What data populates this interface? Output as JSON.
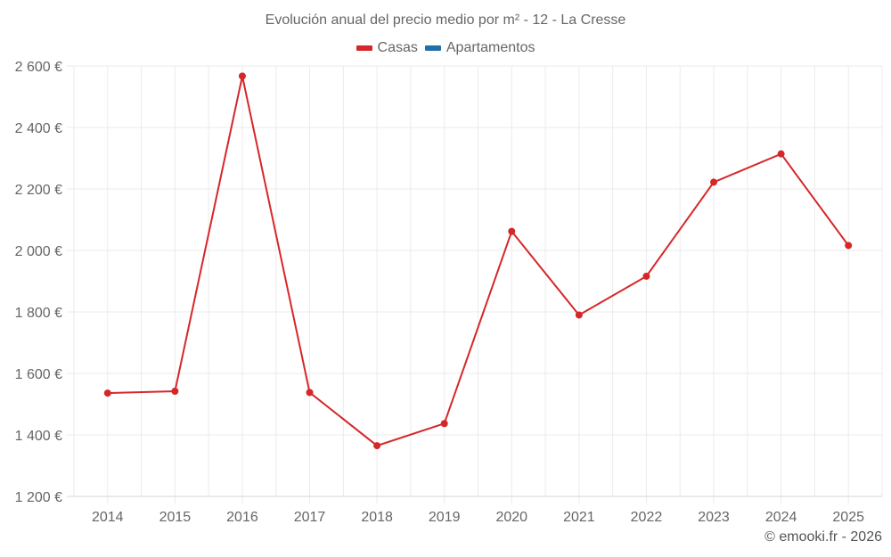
{
  "chart_data": {
    "type": "line",
    "title": "Evolución anual del precio medio por m² - 12 - La Cresse",
    "xlabel": "",
    "ylabel": "",
    "categories": [
      "2014",
      "2015",
      "2016",
      "2017",
      "2018",
      "2019",
      "2020",
      "2021",
      "2022",
      "2023",
      "2024",
      "2025"
    ],
    "series": [
      {
        "name": "Casas",
        "color": "#d62728",
        "values": [
          1536,
          1542,
          2567,
          1538,
          1365,
          1437,
          2062,
          1790,
          1916,
          2222,
          2314,
          2016
        ]
      },
      {
        "name": "Apartamentos",
        "color": "#1f6fa8",
        "values": []
      }
    ],
    "ylim": [
      1200,
      2600
    ],
    "yticks": [
      1200,
      1400,
      1600,
      1800,
      2000,
      2200,
      2400,
      2600
    ],
    "ytick_labels": [
      "1 200 €",
      "1 400 €",
      "1 600 €",
      "1 800 €",
      "2 000 €",
      "2 200 €",
      "2 400 €",
      "2 600 €"
    ],
    "grid": true,
    "legend_position": "top"
  },
  "title": "Evolución anual del precio medio por m² - 12 - La Cresse",
  "legend": [
    {
      "label": "Casas",
      "color": "#d62728"
    },
    {
      "label": "Apartamentos",
      "color": "#1f6fa8"
    }
  ],
  "credit": "© emooki.fr - 2026"
}
